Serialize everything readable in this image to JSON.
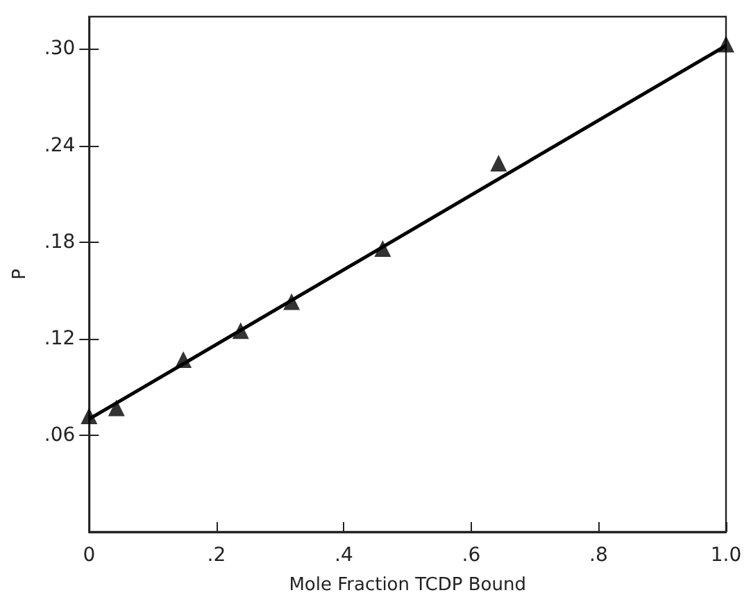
{
  "chart_data": {
    "type": "scatter",
    "xlabel": "Mole Fraction TCDP Bound",
    "ylabel": "P",
    "xlim": [
      0,
      1
    ],
    "ylim": [
      0,
      0.32
    ],
    "xticks": [
      {
        "value": 0,
        "label": "0"
      },
      {
        "value": 0.2,
        "label": ".2"
      },
      {
        "value": 0.4,
        "label": ".4"
      },
      {
        "value": 0.6,
        "label": ".6"
      },
      {
        "value": 0.8,
        "label": ".8"
      },
      {
        "value": 1,
        "label": "1.0"
      }
    ],
    "yticks": [
      {
        "value": 0.06,
        "label": ".06"
      },
      {
        "value": 0.12,
        "label": ".12"
      },
      {
        "value": 0.18,
        "label": ".18"
      },
      {
        "value": 0.24,
        "label": ".24"
      },
      {
        "value": 0.3,
        "label": ".30"
      }
    ],
    "grid": false,
    "series": [
      {
        "marker": "triangle",
        "color": "#000000",
        "x": [
          0,
          0.043,
          0.148,
          0.238,
          0.318,
          0.461,
          0.643,
          1.0
        ],
        "values": [
          0.072,
          0.077,
          0.107,
          0.125,
          0.143,
          0.176,
          0.229,
          0.303
        ]
      },
      {
        "type": "line",
        "marker": "none",
        "color": "#000000",
        "x": [
          0,
          1
        ],
        "values": [
          0.07,
          0.302
        ]
      }
    ]
  }
}
